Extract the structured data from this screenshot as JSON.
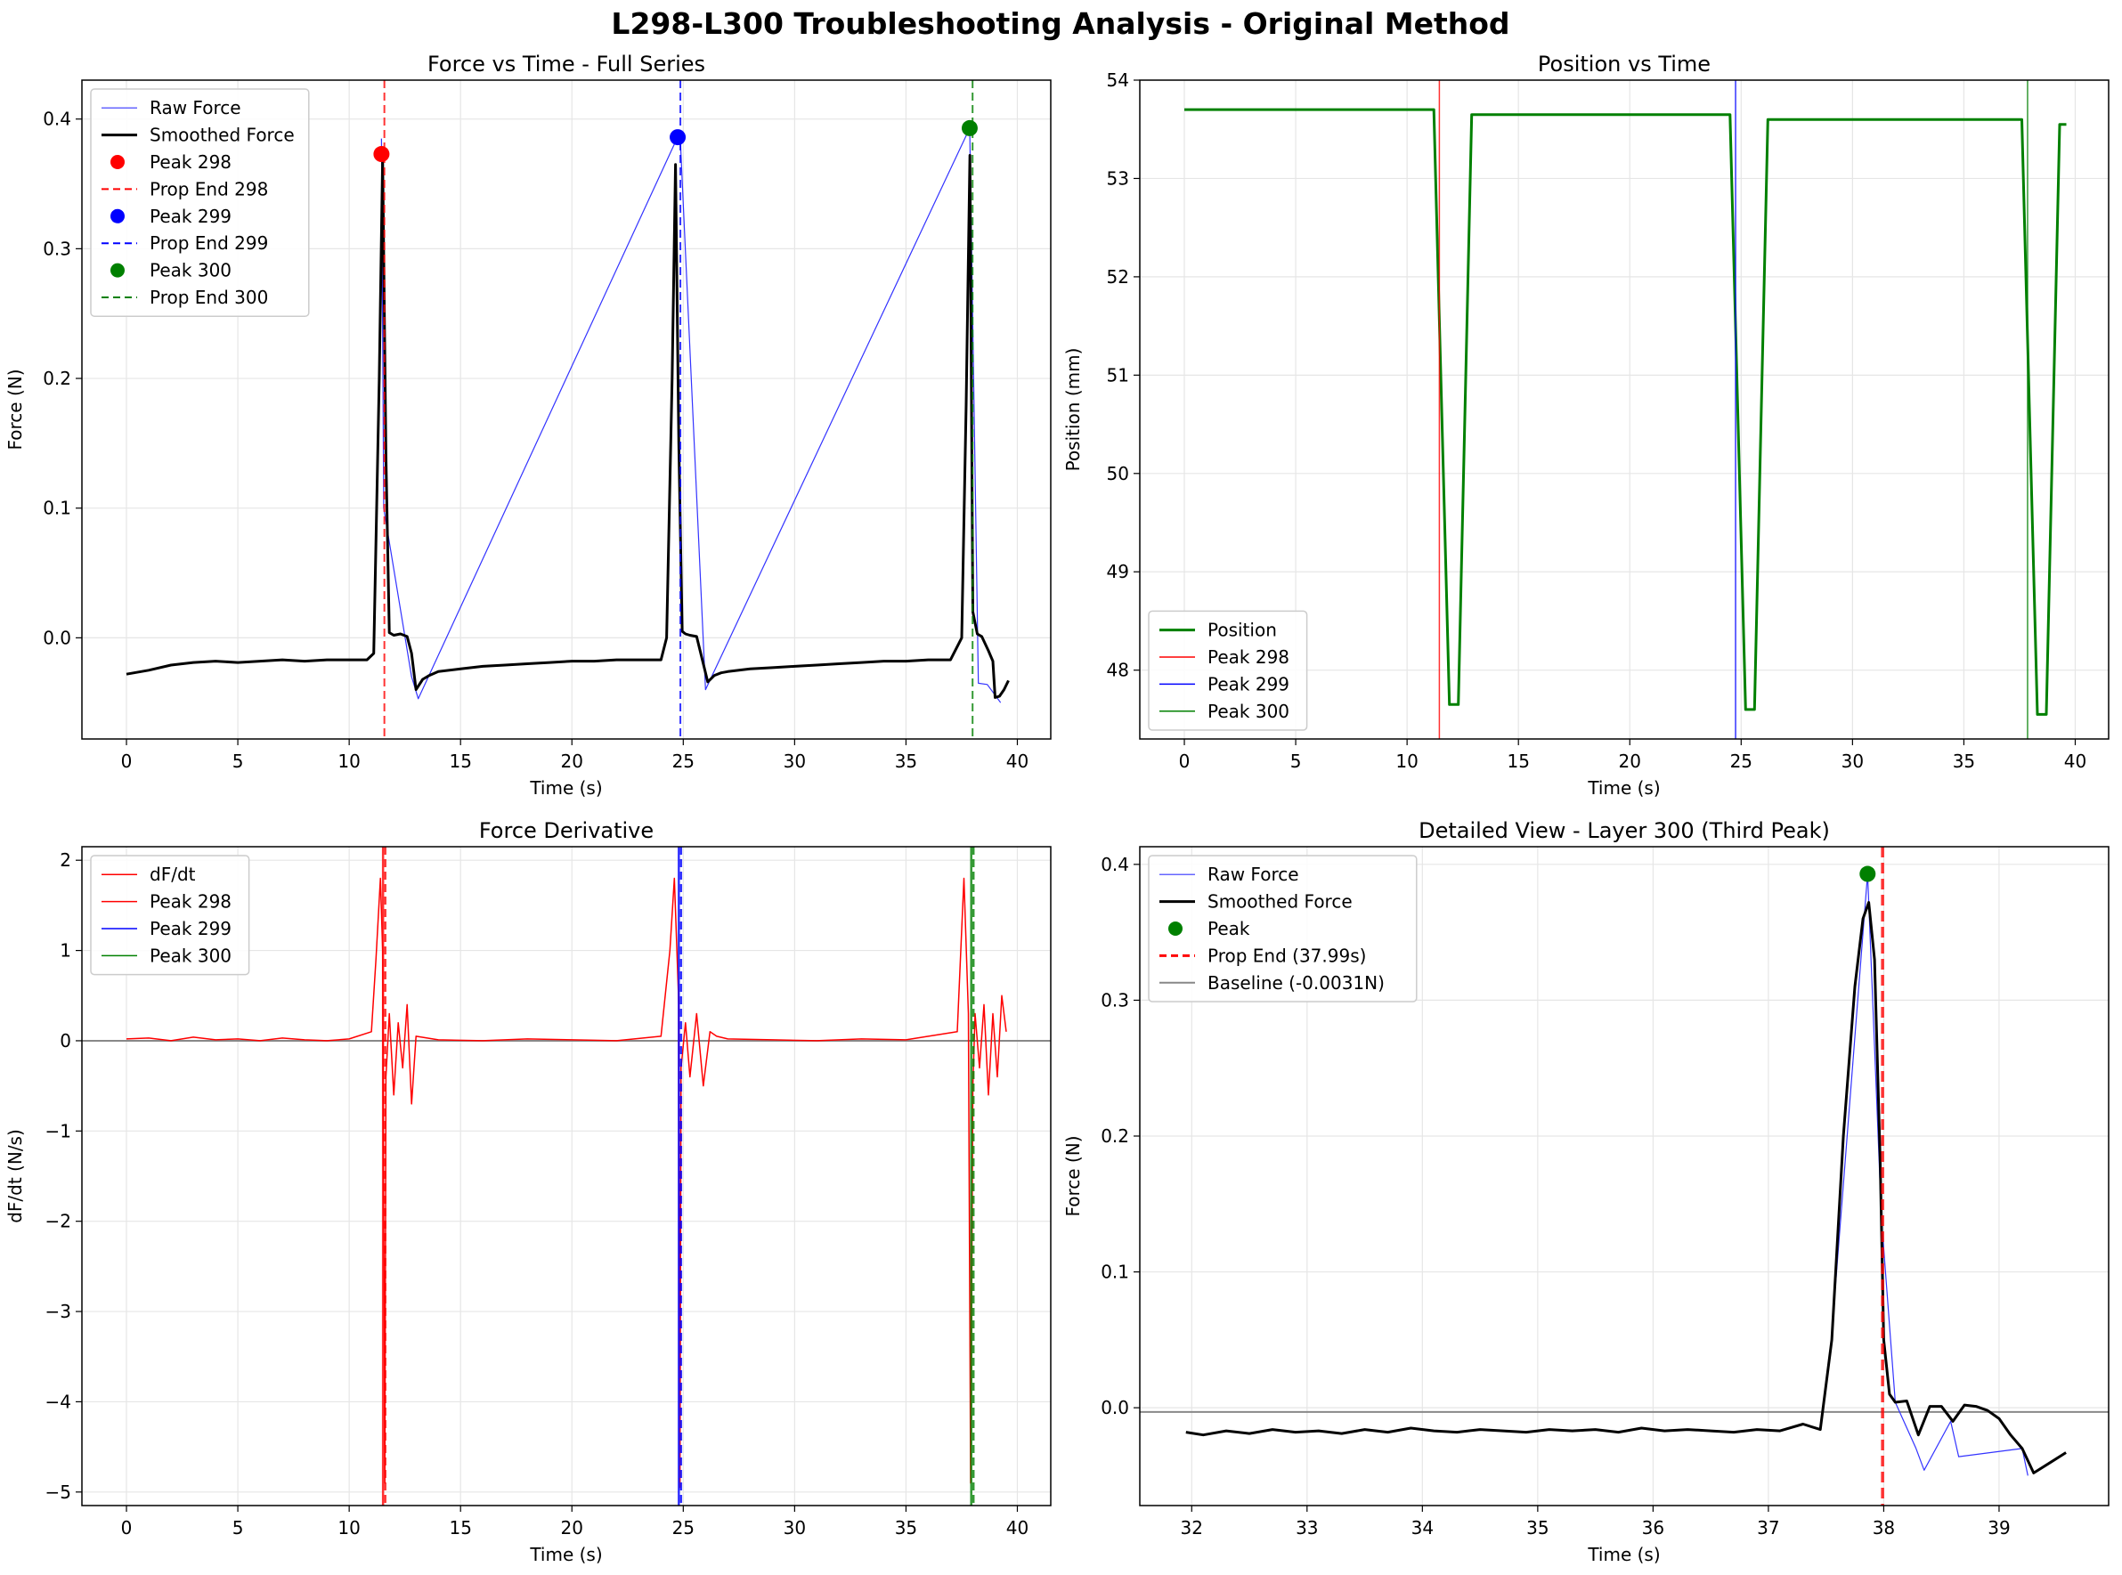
{
  "figure": {
    "suptitle": "L298-L300 Troubleshooting Analysis - Original Method",
    "colors": {
      "raw": "#3333ff",
      "smooth": "#000000",
      "r": "#ff0000",
      "b": "#0000ff",
      "g": "#008000",
      "gray": "#888888"
    }
  },
  "chart_data": [
    {
      "id": "force",
      "type": "line",
      "title": "Force vs Time - Full Series",
      "xlabel": "Time (s)",
      "ylabel": "Force (N)",
      "xlim": [
        -2,
        41.5
      ],
      "ylim": [
        -0.078,
        0.43
      ],
      "xticks": [
        0,
        5,
        10,
        15,
        20,
        25,
        30,
        35,
        40
      ],
      "yticks": [
        0.0,
        0.1,
        0.2,
        0.3,
        0.4
      ],
      "ytick_labels": [
        "0.0",
        "0.1",
        "0.2",
        "0.3",
        "0.4"
      ],
      "grid": true,
      "legend_position": "top-left",
      "legend": [
        {
          "label": "Raw Force",
          "kind": "line",
          "color": "#3333ff",
          "dash": "solid",
          "width": 1.2
        },
        {
          "label": "Smoothed Force",
          "kind": "line",
          "color": "#000000",
          "dash": "solid",
          "width": 3
        },
        {
          "label": "Peak 298",
          "kind": "marker",
          "color": "#ff0000"
        },
        {
          "label": "Prop End 298",
          "kind": "line",
          "color": "#ff0000",
          "dash": "dashed",
          "width": 2
        },
        {
          "label": "Peak 299",
          "kind": "marker",
          "color": "#0000ff"
        },
        {
          "label": "Prop End 299",
          "kind": "line",
          "color": "#0000ff",
          "dash": "dashed",
          "width": 2
        },
        {
          "label": "Peak 300",
          "kind": "marker",
          "color": "#008000"
        },
        {
          "label": "Prop End 300",
          "kind": "line",
          "color": "#008000",
          "dash": "dashed",
          "width": 2
        }
      ],
      "series": [
        {
          "name": "Smoothed Force",
          "color": "#000000",
          "x": [
            0,
            1,
            2,
            3,
            4,
            5,
            6,
            7,
            8,
            9,
            10,
            10.8,
            11.1,
            11.35,
            11.5,
            11.65,
            11.8,
            12.0,
            12.3,
            12.6,
            12.8,
            13.0,
            13.3,
            13.6,
            14,
            15,
            16,
            17,
            18,
            19,
            20,
            21,
            22,
            23,
            24,
            24.25,
            24.5,
            24.65,
            24.8,
            24.95,
            25.1,
            25.3,
            25.6,
            25.9,
            26.1,
            26.4,
            26.7,
            27,
            28,
            29,
            30,
            31,
            32,
            33,
            34,
            35,
            36,
            37,
            37.5,
            37.7,
            37.87,
            38.0,
            38.2,
            38.4,
            38.7,
            38.9,
            39.0,
            39.2,
            39.4,
            39.6
          ],
          "y": [
            -0.028,
            -0.025,
            -0.021,
            -0.019,
            -0.018,
            -0.019,
            -0.018,
            -0.017,
            -0.018,
            -0.017,
            -0.017,
            -0.017,
            -0.012,
            0.2,
            0.37,
            0.14,
            0.004,
            0.002,
            0.003,
            0.001,
            -0.012,
            -0.04,
            -0.032,
            -0.029,
            -0.026,
            -0.024,
            -0.022,
            -0.021,
            -0.02,
            -0.019,
            -0.018,
            -0.018,
            -0.017,
            -0.017,
            -0.017,
            0.0,
            0.2,
            0.365,
            0.15,
            0.005,
            0.003,
            0.002,
            0.001,
            -0.02,
            -0.034,
            -0.029,
            -0.027,
            -0.026,
            -0.024,
            -0.023,
            -0.022,
            -0.021,
            -0.02,
            -0.019,
            -0.018,
            -0.018,
            -0.017,
            -0.017,
            0.0,
            0.18,
            0.372,
            0.02,
            0.003,
            0.001,
            -0.01,
            -0.018,
            -0.046,
            -0.045,
            -0.04,
            -0.033
          ]
        },
        {
          "name": "Raw Force",
          "color": "#3333ff",
          "x": [
            11.45,
            11.55,
            12.8,
            13.1,
            24.85,
            26.0,
            37.86,
            38.25,
            38.65,
            39.25
          ],
          "y": [
            0.385,
            0.1,
            -0.03,
            -0.047,
            0.39,
            -0.04,
            0.393,
            -0.035,
            -0.036,
            -0.05
          ]
        }
      ],
      "markers": [
        {
          "name": "Peak 298",
          "x": 11.45,
          "y": 0.373,
          "color": "#ff0000"
        },
        {
          "name": "Peak 299",
          "x": 24.75,
          "y": 0.386,
          "color": "#0000ff"
        },
        {
          "name": "Peak 300",
          "x": 37.86,
          "y": 0.393,
          "color": "#008000"
        }
      ],
      "vlines": [
        {
          "name": "Prop End 298",
          "x": 11.58,
          "color": "#ff0000",
          "dash": "dashed"
        },
        {
          "name": "Prop End 299",
          "x": 24.87,
          "color": "#0000ff",
          "dash": "dashed"
        },
        {
          "name": "Prop End 300",
          "x": 37.99,
          "color": "#008000",
          "dash": "dashed"
        }
      ]
    },
    {
      "id": "position",
      "type": "line",
      "title": "Position vs Time",
      "xlabel": "Time (s)",
      "ylabel": "Position (mm)",
      "xlim": [
        -2,
        41.5
      ],
      "ylim": [
        47.3,
        54.0
      ],
      "xticks": [
        0,
        5,
        10,
        15,
        20,
        25,
        30,
        35,
        40
      ],
      "yticks": [
        48,
        49,
        50,
        51,
        52,
        53,
        54
      ],
      "ytick_labels": [
        "48",
        "49",
        "50",
        "51",
        "52",
        "53",
        "54"
      ],
      "grid": true,
      "legend_position": "bottom-left",
      "legend": [
        {
          "label": "Position",
          "kind": "line",
          "color": "#008000",
          "dash": "solid",
          "width": 3
        },
        {
          "label": "Peak 298",
          "kind": "line",
          "color": "#ff0000",
          "dash": "solid",
          "width": 1.5
        },
        {
          "label": "Peak 299",
          "kind": "line",
          "color": "#0000ff",
          "dash": "solid",
          "width": 1.5
        },
        {
          "label": "Peak 300",
          "kind": "line",
          "color": "#008000",
          "dash": "solid",
          "width": 1.5
        }
      ],
      "series": [
        {
          "name": "Position",
          "color": "#008000",
          "x": [
            0,
            11.2,
            11.9,
            12.3,
            12.9,
            24.5,
            25.2,
            25.6,
            26.2,
            37.6,
            38.3,
            38.7,
            39.3,
            39.6
          ],
          "y": [
            53.7,
            53.7,
            47.65,
            47.65,
            53.65,
            53.65,
            47.6,
            47.6,
            53.6,
            53.6,
            47.55,
            47.55,
            53.55,
            53.55
          ]
        }
      ],
      "vlines": [
        {
          "name": "Peak 298",
          "x": 11.45,
          "color": "#ff0000",
          "dash": "solid"
        },
        {
          "name": "Peak 299",
          "x": 24.75,
          "color": "#0000ff",
          "dash": "solid"
        },
        {
          "name": "Peak 300",
          "x": 37.86,
          "color": "#008000",
          "dash": "solid"
        }
      ]
    },
    {
      "id": "derivative",
      "type": "line",
      "title": "Force Derivative",
      "xlabel": "Time (s)",
      "ylabel": "dF/dt (N/s)",
      "xlim": [
        -2,
        41.5
      ],
      "ylim": [
        -5.15,
        2.15
      ],
      "xticks": [
        0,
        5,
        10,
        15,
        20,
        25,
        30,
        35,
        40
      ],
      "yticks": [
        -5,
        -4,
        -3,
        -2,
        -1,
        0,
        1,
        2
      ],
      "ytick_labels": [
        "−5",
        "−4",
        "−3",
        "−2",
        "−1",
        "0",
        "1",
        "2"
      ],
      "grid": true,
      "legend_position": "top-left",
      "legend": [
        {
          "label": "dF/dt",
          "kind": "line",
          "color": "#ff0000",
          "dash": "solid",
          "width": 1.5
        },
        {
          "label": "Peak 298",
          "kind": "line",
          "color": "#ff0000",
          "dash": "solid",
          "width": 1.5
        },
        {
          "label": "Peak 299",
          "kind": "line",
          "color": "#0000ff",
          "dash": "solid",
          "width": 1.5
        },
        {
          "label": "Peak 300",
          "kind": "line",
          "color": "#008000",
          "dash": "solid",
          "width": 1.5
        }
      ],
      "series": [
        {
          "name": "dF/dt",
          "color": "#ff0000",
          "x": [
            0,
            1,
            2,
            3,
            4,
            5,
            6,
            7,
            8,
            9,
            10,
            11.0,
            11.2,
            11.4,
            11.5,
            11.6,
            11.65,
            11.8,
            12.0,
            12.2,
            12.4,
            12.6,
            12.8,
            13.0,
            14,
            16,
            18,
            20,
            22,
            24,
            24.4,
            24.6,
            24.8,
            24.85,
            24.9,
            25.1,
            25.3,
            25.6,
            25.9,
            26.2,
            26.5,
            27,
            29,
            31,
            33,
            35,
            37.3,
            37.6,
            37.8,
            37.9,
            38.0,
            38.1,
            38.3,
            38.5,
            38.7,
            38.9,
            39.1,
            39.3,
            39.5
          ],
          "y": [
            0.02,
            0.03,
            0.0,
            0.04,
            0.01,
            0.02,
            0.0,
            0.03,
            0.01,
            0.0,
            0.02,
            0.1,
            0.9,
            1.8,
            1.0,
            -4.9,
            -0.4,
            0.3,
            -0.6,
            0.2,
            -0.3,
            0.4,
            -0.7,
            0.05,
            0.01,
            0.0,
            0.02,
            0.01,
            0.0,
            0.05,
            1.0,
            1.8,
            0.4,
            -4.95,
            -0.3,
            0.2,
            -0.4,
            0.3,
            -0.5,
            0.1,
            0.05,
            0.02,
            0.01,
            0.0,
            0.02,
            0.01,
            0.1,
            1.8,
            0.3,
            -4.9,
            -0.5,
            0.3,
            -0.3,
            0.4,
            -0.6,
            0.3,
            -0.4,
            0.5,
            0.1
          ]
        }
      ],
      "hlines": [
        {
          "y": 0,
          "color": "#888888"
        }
      ],
      "vlines": [
        {
          "name": "Peak 298",
          "x": 11.52,
          "color": "#ff0000",
          "dash": "solid"
        },
        {
          "name": "Prop End 298",
          "x": 11.62,
          "color": "#ff0000",
          "dash": "dashed"
        },
        {
          "name": "Peak 299",
          "x": 24.8,
          "color": "#0000ff",
          "dash": "solid"
        },
        {
          "name": "Prop End 299",
          "x": 24.9,
          "color": "#0000ff",
          "dash": "dashed"
        },
        {
          "name": "Peak 300",
          "x": 37.93,
          "color": "#008000",
          "dash": "solid"
        },
        {
          "name": "Prop End 300",
          "x": 38.03,
          "color": "#008000",
          "dash": "dashed"
        }
      ]
    },
    {
      "id": "detail",
      "type": "line",
      "title": "Detailed View - Layer 300 (Third Peak)",
      "xlabel": "Time (s)",
      "ylabel": "Force (N)",
      "xlim": [
        31.55,
        39.95
      ],
      "ylim": [
        -0.072,
        0.413
      ],
      "xticks": [
        32,
        33,
        34,
        35,
        36,
        37,
        38,
        39
      ],
      "yticks": [
        0.0,
        0.1,
        0.2,
        0.3,
        0.4
      ],
      "ytick_labels": [
        "0.0",
        "0.1",
        "0.2",
        "0.3",
        "0.4"
      ],
      "grid": true,
      "legend_position": "top-left",
      "legend": [
        {
          "label": "Raw Force",
          "kind": "line",
          "color": "#3333ff",
          "dash": "solid",
          "width": 1.2
        },
        {
          "label": "Smoothed Force",
          "kind": "line",
          "color": "#000000",
          "dash": "solid",
          "width": 3
        },
        {
          "label": "Peak",
          "kind": "marker",
          "color": "#008000"
        },
        {
          "label": "Prop End (37.99s)",
          "kind": "line",
          "color": "#ff0000",
          "dash": "dashed",
          "width": 3
        },
        {
          "label": "Baseline (-0.0031N)",
          "kind": "line",
          "color": "#888888",
          "dash": "solid",
          "width": 2
        }
      ],
      "series": [
        {
          "name": "Smoothed Force",
          "color": "#000000",
          "x": [
            31.95,
            32.1,
            32.3,
            32.5,
            32.7,
            32.9,
            33.1,
            33.3,
            33.5,
            33.7,
            33.9,
            34.1,
            34.3,
            34.5,
            34.7,
            34.9,
            35.1,
            35.3,
            35.5,
            35.7,
            35.9,
            36.1,
            36.3,
            36.5,
            36.7,
            36.9,
            37.1,
            37.3,
            37.45,
            37.55,
            37.65,
            37.75,
            37.82,
            37.87,
            37.92,
            37.97,
            38.0,
            38.05,
            38.1,
            38.2,
            38.3,
            38.4,
            38.5,
            38.6,
            38.7,
            38.8,
            38.9,
            39.0,
            39.1,
            39.2,
            39.3,
            39.45,
            39.58
          ],
          "y": [
            -0.018,
            -0.02,
            -0.017,
            -0.019,
            -0.016,
            -0.018,
            -0.017,
            -0.019,
            -0.016,
            -0.018,
            -0.015,
            -0.017,
            -0.018,
            -0.016,
            -0.017,
            -0.018,
            -0.016,
            -0.017,
            -0.016,
            -0.018,
            -0.015,
            -0.017,
            -0.016,
            -0.017,
            -0.018,
            -0.016,
            -0.017,
            -0.012,
            -0.016,
            0.05,
            0.2,
            0.31,
            0.36,
            0.372,
            0.33,
            0.18,
            0.05,
            0.01,
            0.004,
            0.005,
            -0.02,
            0.001,
            0.001,
            -0.01,
            0.002,
            0.001,
            -0.002,
            -0.008,
            -0.02,
            -0.03,
            -0.048,
            -0.04,
            -0.033
          ]
        },
        {
          "name": "Raw Force",
          "color": "#3333ff",
          "x": [
            37.55,
            37.86,
            37.98,
            38.1,
            38.28,
            38.35,
            38.58,
            38.65,
            39.2,
            39.25
          ],
          "y": [
            0.055,
            0.393,
            0.14,
            0.004,
            -0.03,
            -0.046,
            -0.01,
            -0.036,
            -0.03,
            -0.05
          ]
        }
      ],
      "markers": [
        {
          "name": "Peak",
          "x": 37.86,
          "y": 0.393,
          "color": "#008000"
        }
      ],
      "hlines": [
        {
          "name": "Baseline (-0.0031N)",
          "y": -0.0031,
          "color": "#888888"
        }
      ],
      "vlines": [
        {
          "name": "Prop End (37.99s)",
          "x": 37.99,
          "color": "#ff0000",
          "dash": "dashed"
        }
      ]
    }
  ]
}
